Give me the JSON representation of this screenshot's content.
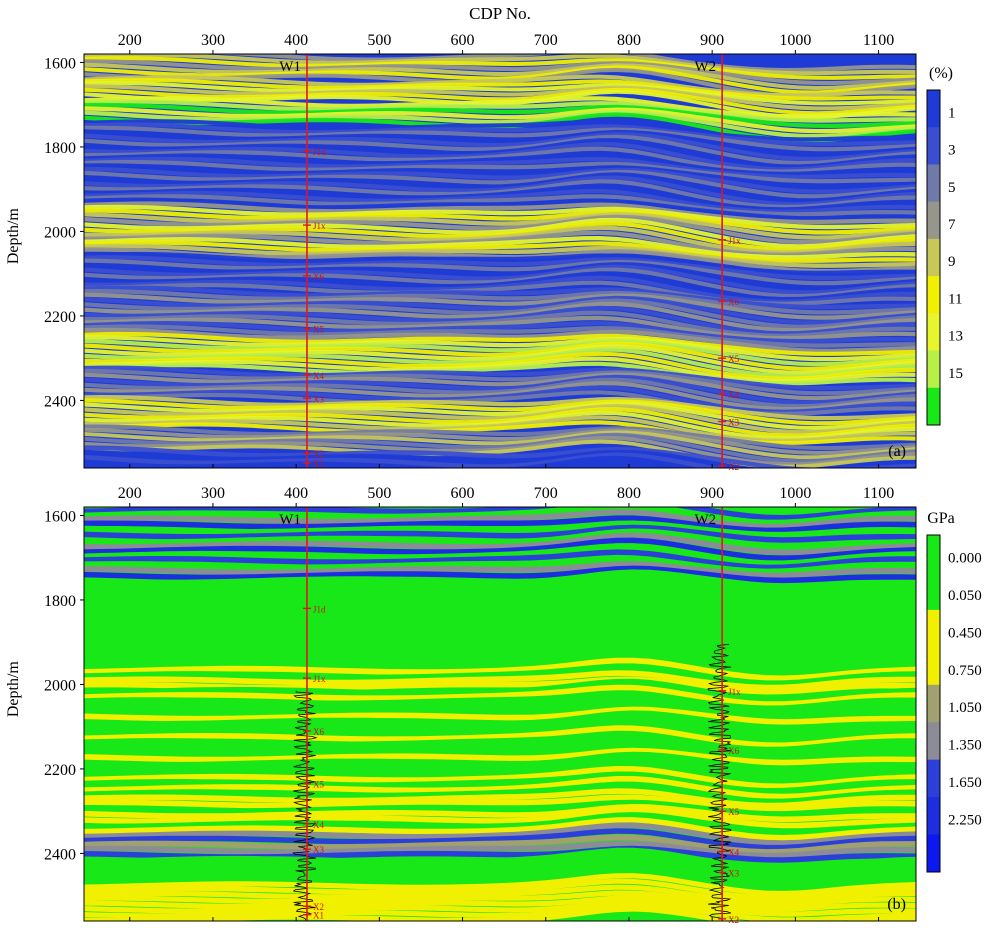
{
  "top_axis_title": "CDP No.",
  "chart_data": [
    {
      "type": "heatmap",
      "panel_label": "(a)",
      "xlabel": "CDP No.",
      "ylabel": "Depth/m",
      "xlim": [
        145,
        1145
      ],
      "ylim": [
        1580,
        2560
      ],
      "y_inverted": true,
      "x_ticks": [
        200,
        300,
        400,
        500,
        600,
        700,
        800,
        900,
        1000,
        1100
      ],
      "y_ticks": [
        1600,
        1800,
        2000,
        2200,
        2400
      ],
      "colorbar": {
        "unit": "(%)",
        "labels": [
          "1",
          "3",
          "5",
          "7",
          "9",
          "11",
          "13",
          "15"
        ],
        "colors": [
          "#1f3bd6",
          "#3a4ed0",
          "#7179a8",
          "#96968c",
          "#c8c858",
          "#f0f000",
          "#e6f52c",
          "#b8f04a",
          "#18e818"
        ]
      },
      "wells": [
        {
          "name": "W1",
          "cdp": 413,
          "markers": [
            {
              "label": "J1d",
              "depth": 1810
            },
            {
              "label": "J1x",
              "depth": 1985
            },
            {
              "label": "X6",
              "depth": 2105
            },
            {
              "label": "X5",
              "depth": 2230
            },
            {
              "label": "X4",
              "depth": 2340
            },
            {
              "label": "X3",
              "depth": 2395
            },
            {
              "label": "X2",
              "depth": 2525
            },
            {
              "label": "X1",
              "depth": 2548
            }
          ]
        },
        {
          "name": "W2",
          "cdp": 912,
          "markers": [
            {
              "label": "J1x",
              "depth": 2020
            },
            {
              "label": "X6",
              "depth": 2165
            },
            {
              "label": "X5",
              "depth": 2300
            },
            {
              "label": "X4",
              "depth": 2385
            },
            {
              "label": "X3",
              "depth": 2450
            },
            {
              "label": "X2",
              "depth": 2555
            }
          ]
        }
      ]
    },
    {
      "type": "heatmap",
      "panel_label": "(b)",
      "xlabel": "",
      "ylabel": "Depth/m",
      "xlim": [
        145,
        1145
      ],
      "ylim": [
        1580,
        2560
      ],
      "y_inverted": true,
      "x_ticks": [
        200,
        300,
        400,
        500,
        600,
        700,
        800,
        900,
        1000,
        1100
      ],
      "y_ticks": [
        1600,
        1800,
        2000,
        2200,
        2400
      ],
      "colorbar": {
        "unit": "GPa",
        "labels": [
          "0.000",
          "0.050",
          "0.450",
          "0.750",
          "1.050",
          "1.350",
          "1.650",
          "2.250"
        ],
        "colors": [
          "#18e818",
          "#18e818",
          "#f0f000",
          "#f0f000",
          "#a0a070",
          "#8c8c96",
          "#2b40d8",
          "#1c2ee0",
          "#0b18f0"
        ]
      },
      "wells": [
        {
          "name": "W1",
          "cdp": 413,
          "markers": [
            {
              "label": "J1d",
              "depth": 1820
            },
            {
              "label": "J1x",
              "depth": 1985
            },
            {
              "label": "X6",
              "depth": 2110
            },
            {
              "label": "X5",
              "depth": 2235
            },
            {
              "label": "X4",
              "depth": 2330
            },
            {
              "label": "X3",
              "depth": 2390
            },
            {
              "label": "X2",
              "depth": 2525
            },
            {
              "label": "X1",
              "depth": 2545
            }
          ]
        },
        {
          "name": "W2",
          "cdp": 912,
          "markers": [
            {
              "label": "J1x",
              "depth": 2015
            },
            {
              "label": "X6",
              "depth": 2155
            },
            {
              "label": "X5",
              "depth": 2300
            },
            {
              "label": "X4",
              "depth": 2395
            },
            {
              "label": "X3",
              "depth": 2445
            },
            {
              "label": "X2",
              "depth": 2555
            }
          ]
        }
      ]
    }
  ]
}
